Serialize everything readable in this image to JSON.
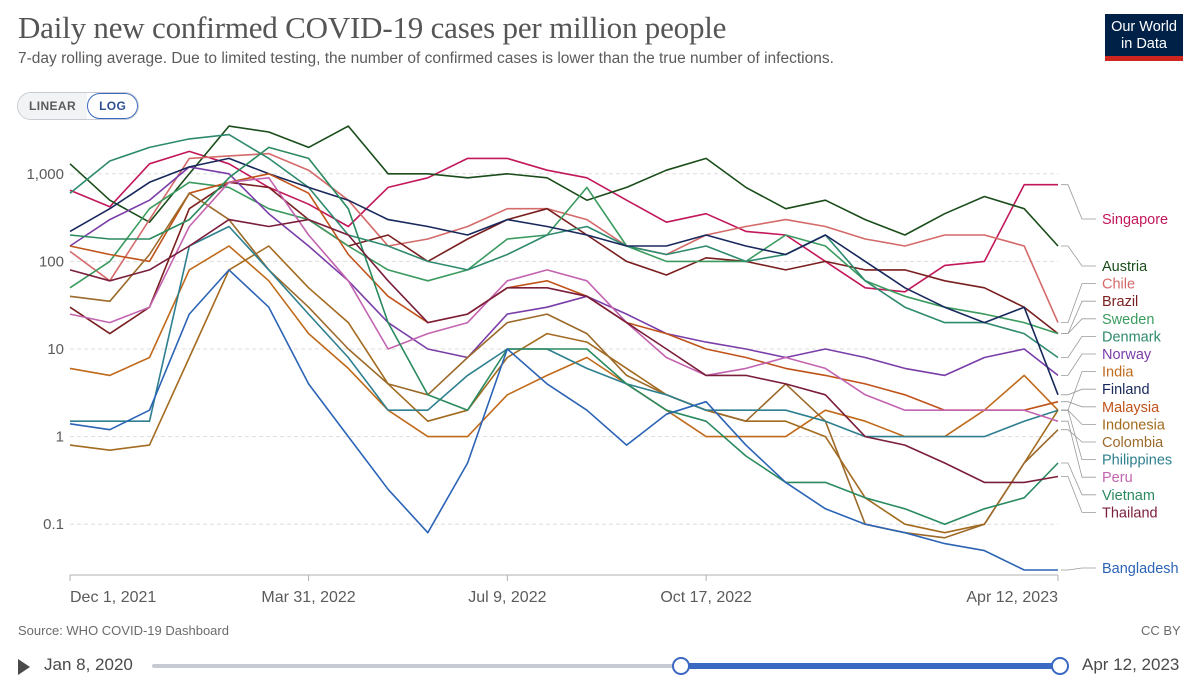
{
  "header": {
    "title": "Daily new confirmed COVID-19 cases per million people",
    "subtitle": "7-day rolling average. Due to limited testing, the number of confirmed cases is lower than the true number of infections.",
    "logo_line1": "Our World",
    "logo_line2": "in Data"
  },
  "scale_toggle": {
    "linear": "LINEAR",
    "log": "LOG",
    "selected": "LOG"
  },
  "footer": {
    "source": "Source: WHO COVID-19 Dashboard",
    "license": "CC BY"
  },
  "timeline": {
    "start": "Jan 8, 2020",
    "end": "Apr 12, 2023"
  },
  "colors": {
    "grid": "#dddddd",
    "axis": "#b0b0b0",
    "tick_text": "#5b5b5b",
    "accent": "#3a68c2"
  },
  "chart_data": {
    "type": "line",
    "title": "Daily new confirmed COVID-19 cases per million people",
    "yscale": "log",
    "ylim": [
      0.03,
      3000
    ],
    "y_ticks": [
      {
        "value": 0.1,
        "label": "0.1"
      },
      {
        "value": 1,
        "label": "1"
      },
      {
        "value": 10,
        "label": "10"
      },
      {
        "value": 100,
        "label": "100"
      },
      {
        "value": 1000,
        "label": "1,000"
      }
    ],
    "x_ticks": [
      {
        "value": 0,
        "label": "Dec 1, 2021"
      },
      {
        "value": 120,
        "label": "Mar 31, 2022"
      },
      {
        "value": 220,
        "label": "Jul 9, 2022"
      },
      {
        "value": 320,
        "label": "Oct 17, 2022"
      },
      {
        "value": 497,
        "label": "Apr 12, 2023"
      }
    ],
    "x": [
      0,
      20,
      40,
      60,
      80,
      100,
      120,
      140,
      160,
      180,
      200,
      220,
      240,
      260,
      280,
      300,
      320,
      340,
      360,
      380,
      400,
      420,
      440,
      460,
      480,
      497
    ],
    "series": [
      {
        "name": "Singapore",
        "color": "#c2185b",
        "values": [
          650,
          420,
          1300,
          1800,
          1300,
          700,
          450,
          250,
          700,
          900,
          1500,
          1500,
          1100,
          900,
          500,
          280,
          350,
          220,
          200,
          100,
          50,
          45,
          90,
          100,
          750,
          750
        ]
      },
      {
        "name": "Austria",
        "color": "#1b4d1b",
        "values": [
          1300,
          500,
          280,
          1000,
          3500,
          3000,
          2000,
          3500,
          1000,
          1000,
          900,
          1000,
          900,
          500,
          700,
          1100,
          1500,
          700,
          400,
          500,
          300,
          200,
          350,
          550,
          400,
          150
        ]
      },
      {
        "name": "Chile",
        "color": "#d46a6a",
        "values": [
          130,
          60,
          300,
          1500,
          1600,
          1700,
          1100,
          500,
          150,
          180,
          250,
          400,
          400,
          300,
          150,
          120,
          200,
          250,
          300,
          250,
          180,
          150,
          200,
          200,
          150,
          20
        ]
      },
      {
        "name": "Brazil",
        "color": "#7a1f1f",
        "values": [
          30,
          15,
          30,
          400,
          800,
          700,
          300,
          150,
          200,
          100,
          180,
          300,
          400,
          200,
          100,
          70,
          110,
          100,
          80,
          100,
          80,
          80,
          60,
          50,
          30,
          15
        ]
      },
      {
        "name": "Sweden",
        "color": "#3b9b5f",
        "values": [
          50,
          100,
          400,
          800,
          700,
          400,
          300,
          150,
          80,
          60,
          80,
          180,
          200,
          700,
          150,
          100,
          100,
          100,
          200,
          150,
          60,
          40,
          30,
          25,
          20,
          15
        ]
      },
      {
        "name": "Denmark",
        "color": "#2e8a6e",
        "values": [
          600,
          1400,
          2000,
          2500,
          2800,
          1500,
          700,
          200,
          150,
          100,
          80,
          120,
          200,
          250,
          150,
          120,
          150,
          100,
          120,
          200,
          60,
          30,
          20,
          20,
          15,
          8
        ]
      },
      {
        "name": "Norway",
        "color": "#7a3ea8",
        "values": [
          150,
          300,
          500,
          1200,
          1000,
          350,
          150,
          60,
          20,
          10,
          8,
          25,
          30,
          40,
          25,
          15,
          12,
          10,
          8,
          10,
          8,
          6,
          5,
          8,
          10,
          5
        ]
      },
      {
        "name": "India",
        "color": "#c06a1a",
        "values": [
          6,
          5,
          8,
          80,
          150,
          60,
          15,
          6,
          2,
          1,
          1,
          3,
          5,
          8,
          4,
          2,
          1,
          1,
          1,
          2,
          1.5,
          1,
          1,
          2,
          5,
          2
        ]
      },
      {
        "name": "Finland",
        "color": "#18285c",
        "values": [
          220,
          400,
          800,
          1200,
          1500,
          1000,
          700,
          500,
          300,
          250,
          200,
          300,
          250,
          200,
          150,
          150,
          200,
          150,
          120,
          200,
          100,
          50,
          30,
          20,
          30,
          3
        ]
      },
      {
        "name": "Malaysia",
        "color": "#c0531a",
        "values": [
          150,
          120,
          100,
          600,
          800,
          1000,
          600,
          120,
          40,
          20,
          25,
          50,
          60,
          40,
          20,
          15,
          10,
          8,
          6,
          5,
          4,
          3,
          2,
          2,
          2,
          2.5
        ]
      },
      {
        "name": "Indonesia",
        "color": "#a36b1f",
        "values": [
          0.8,
          0.7,
          0.8,
          8,
          80,
          150,
          50,
          20,
          4,
          1.5,
          2,
          8,
          15,
          12,
          6,
          3,
          2,
          1.5,
          1.5,
          1,
          0.2,
          0.1,
          0.08,
          0.1,
          0.5,
          2
        ]
      },
      {
        "name": "Colombia",
        "color": "#9c6a2a",
        "values": [
          40,
          35,
          120,
          600,
          300,
          80,
          30,
          10,
          4,
          3,
          8,
          20,
          25,
          15,
          5,
          3,
          2,
          1.5,
          4,
          1.5,
          0.1,
          0.08,
          0.07,
          0.1,
          0.5,
          1.2
        ]
      },
      {
        "name": "Philippines",
        "color": "#2e7f8f",
        "values": [
          1.5,
          1.5,
          1.5,
          150,
          250,
          80,
          25,
          8,
          2,
          2,
          5,
          10,
          10,
          6,
          4,
          3,
          2,
          2,
          2,
          1.5,
          1,
          1,
          1,
          1,
          1.5,
          2
        ]
      },
      {
        "name": "Peru",
        "color": "#c364b0",
        "values": [
          25,
          20,
          30,
          250,
          800,
          900,
          200,
          60,
          10,
          15,
          20,
          60,
          80,
          60,
          20,
          8,
          5,
          6,
          8,
          6,
          3,
          2,
          2,
          2,
          2,
          1.5
        ]
      },
      {
        "name": "Vietnam",
        "color": "#2a8a5f",
        "values": [
          200,
          180,
          180,
          300,
          900,
          2000,
          1500,
          400,
          20,
          3,
          2,
          10,
          10,
          10,
          4,
          2,
          1.5,
          0.6,
          0.3,
          0.3,
          0.2,
          0.15,
          0.1,
          0.15,
          0.2,
          0.5
        ]
      },
      {
        "name": "Thailand",
        "color": "#7a1e3a",
        "values": [
          80,
          60,
          80,
          150,
          300,
          250,
          300,
          200,
          60,
          20,
          25,
          50,
          50,
          40,
          20,
          10,
          5,
          5,
          4,
          3,
          1,
          0.8,
          0.5,
          0.3,
          0.3,
          0.35
        ]
      },
      {
        "name": "Bangladesh",
        "color": "#2c64b5",
        "values": [
          1.4,
          1.2,
          2,
          25,
          80,
          30,
          4,
          1,
          0.25,
          0.08,
          0.5,
          10,
          4,
          2,
          0.8,
          1.8,
          2.5,
          0.8,
          0.3,
          0.15,
          0.1,
          0.08,
          0.06,
          0.05,
          0.03,
          0.03
        ]
      }
    ]
  }
}
